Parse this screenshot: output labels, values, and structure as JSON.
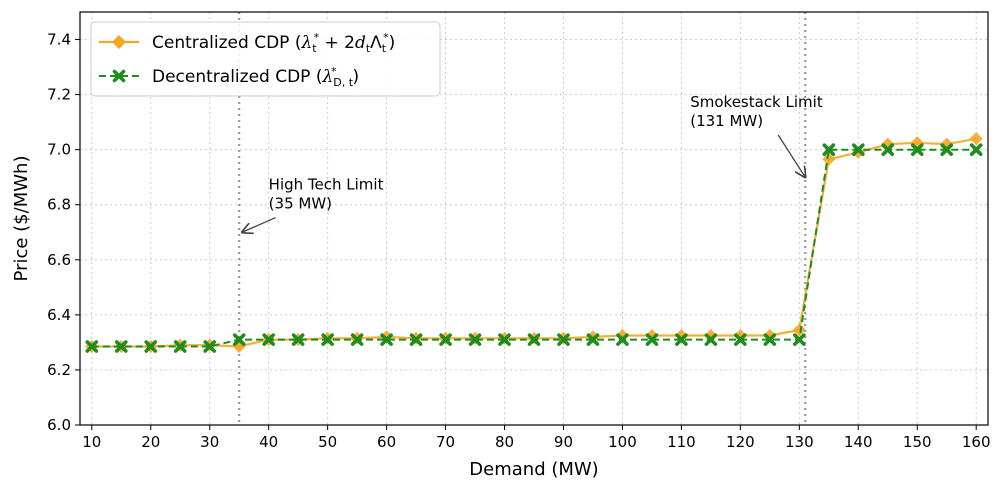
{
  "chart_data": {
    "type": "line",
    "xlabel": "Demand (MW)",
    "ylabel": "Price ($/MWh)",
    "xlim": [
      8,
      162
    ],
    "ylim": [
      6.0,
      7.5
    ],
    "xticks": [
      10,
      20,
      30,
      40,
      50,
      60,
      70,
      80,
      90,
      100,
      110,
      120,
      130,
      140,
      150,
      160
    ],
    "yticks": [
      6.0,
      6.2,
      6.4,
      6.6,
      6.8,
      7.0,
      7.2,
      7.4
    ],
    "ytick_labels": [
      "6.0",
      "6.2",
      "6.4",
      "6.6",
      "6.8",
      "7.0",
      "7.2",
      "7.4"
    ],
    "grid": true,
    "legend_position": "top-left",
    "x": [
      10,
      15,
      20,
      25,
      30,
      35,
      40,
      45,
      50,
      55,
      60,
      65,
      70,
      75,
      80,
      85,
      90,
      95,
      100,
      105,
      110,
      115,
      120,
      125,
      130,
      135,
      140,
      145,
      150,
      155,
      160
    ],
    "series": [
      {
        "name": "Centralized CDP",
        "legend_prefix": "Centralized CDP (",
        "legend_suffix": ")",
        "color": "#f5a623",
        "marker": "diamond",
        "linestyle": "solid",
        "values": [
          6.285,
          6.285,
          6.285,
          6.29,
          6.29,
          6.285,
          6.31,
          6.31,
          6.315,
          6.315,
          6.32,
          6.315,
          6.315,
          6.315,
          6.315,
          6.315,
          6.315,
          6.32,
          6.325,
          6.325,
          6.325,
          6.325,
          6.325,
          6.325,
          6.345,
          6.965,
          6.99,
          7.02,
          7.025,
          7.02,
          7.04
        ]
      },
      {
        "name": "Decentralized CDP",
        "legend_prefix": "Decentralized CDP (",
        "legend_suffix": ")",
        "color": "#1e8c1e",
        "marker": "x",
        "linestyle": "dashed",
        "values": [
          6.285,
          6.285,
          6.285,
          6.285,
          6.285,
          6.31,
          6.31,
          6.31,
          6.31,
          6.31,
          6.31,
          6.31,
          6.31,
          6.31,
          6.31,
          6.31,
          6.31,
          6.31,
          6.31,
          6.31,
          6.31,
          6.31,
          6.31,
          6.31,
          6.31,
          7.0,
          7.0,
          7.0,
          7.0,
          7.0,
          7.0
        ]
      }
    ],
    "vlines": [
      {
        "x": 35,
        "color": "#999999",
        "style": "dotted"
      },
      {
        "x": 131,
        "color": "#999999",
        "style": "dotted"
      }
    ],
    "annotations": [
      {
        "line1": "High Tech Limit",
        "line2": "(35 MW)",
        "arrow_to_x": 35.5,
        "arrow_to_y": 6.7,
        "text_x": 40,
        "text_y": 6.855
      },
      {
        "line1": "Smokestack Limit",
        "line2": "(131 MW)",
        "arrow_to_x": 131,
        "arrow_to_y": 6.9,
        "text_x": 111.5,
        "text_y": 7.155
      }
    ]
  }
}
